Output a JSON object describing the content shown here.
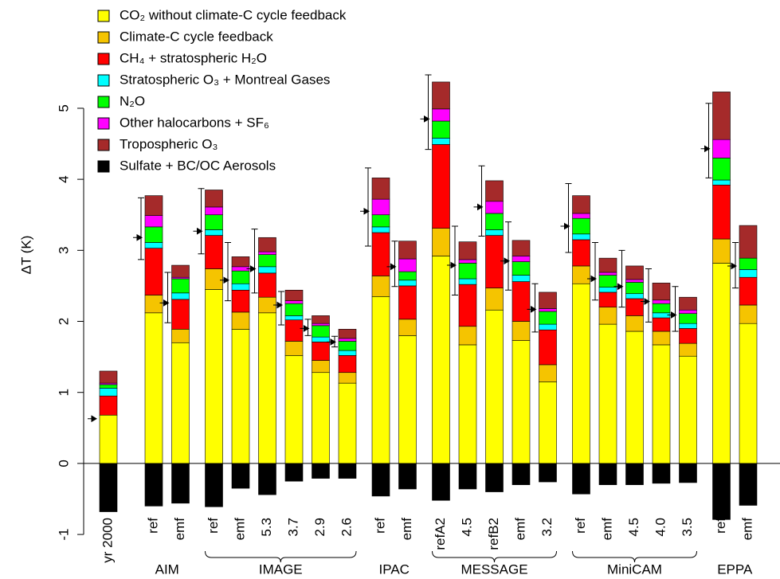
{
  "chart_data": {
    "type": "stacked-bar",
    "y_label": "ΔT (K)",
    "ylim": [
      -1.1,
      6.3
    ],
    "yticks": [
      -1,
      0,
      1,
      2,
      3,
      4,
      5
    ],
    "categories": [
      "yr 2000",
      "ref",
      "emf",
      "ref",
      "emf",
      "5.3",
      "3.7",
      "2.9",
      "2.6",
      "ref",
      "emf",
      "refA2",
      "4.5",
      "refB2",
      "emf",
      "3.2",
      "ref",
      "emf",
      "4.5",
      "4.0",
      "3.5",
      "ref",
      "emf"
    ],
    "groups": [
      {
        "name": "AIM",
        "first": 1,
        "last": 2
      },
      {
        "name": "IMAGE",
        "first": 3,
        "last": 8
      },
      {
        "name": "IPAC",
        "first": 9,
        "last": 10
      },
      {
        "name": "MESSAGE",
        "first": 11,
        "last": 15
      },
      {
        "name": "MiniCAM",
        "first": 16,
        "last": 20
      },
      {
        "name": "EPPA",
        "first": 21,
        "last": 22
      }
    ],
    "series": [
      {
        "name": "CO₂ without climate-C cycle feedback",
        "color": "#ffff00",
        "values": [
          0.68,
          2.12,
          1.7,
          2.45,
          1.89,
          2.12,
          1.52,
          1.28,
          1.13,
          2.35,
          1.8,
          2.92,
          1.67,
          2.16,
          1.73,
          1.15,
          2.53,
          1.96,
          1.86,
          1.67,
          1.51,
          2.82,
          1.97
        ]
      },
      {
        "name": "Climate-C cycle feedback",
        "color": "#f5c400",
        "values": [
          0,
          0.25,
          0.19,
          0.29,
          0.24,
          0.22,
          0.2,
          0.17,
          0.15,
          0.29,
          0.23,
          0.39,
          0.26,
          0.31,
          0.27,
          0.24,
          0.25,
          0.24,
          0.22,
          0.19,
          0.18,
          0.34,
          0.26
        ]
      },
      {
        "name": "CH₄ + stratospheric H₂O",
        "color": "#ff0000",
        "values": [
          0.27,
          0.66,
          0.42,
          0.47,
          0.31,
          0.34,
          0.3,
          0.26,
          0.24,
          0.61,
          0.47,
          1.18,
          0.59,
          0.74,
          0.56,
          0.49,
          0.37,
          0.21,
          0.24,
          0.19,
          0.21,
          0.76,
          0.39
        ]
      },
      {
        "name": "Stratospheric O₃ + Montreal Gases",
        "color": "#00ffff",
        "values": [
          0.11,
          0.08,
          0.09,
          0.08,
          0.09,
          0.09,
          0.06,
          0.07,
          0.07,
          0.08,
          0.08,
          0.09,
          0.08,
          0.08,
          0.09,
          0.08,
          0.08,
          0.07,
          0.07,
          0.07,
          0.07,
          0.07,
          0.11
        ]
      },
      {
        "name": "N₂O",
        "color": "#00ff00",
        "values": [
          0.05,
          0.22,
          0.2,
          0.21,
          0.18,
          0.17,
          0.17,
          0.16,
          0.13,
          0.17,
          0.12,
          0.24,
          0.22,
          0.23,
          0.19,
          0.18,
          0.22,
          0.17,
          0.16,
          0.13,
          0.14,
          0.31,
          0.16
        ]
      },
      {
        "name": "Other halocarbons + SF₆",
        "color": "#ff00ff",
        "values": [
          0.02,
          0.16,
          0.02,
          0.11,
          0.06,
          0.04,
          0.04,
          0.03,
          0.04,
          0.22,
          0.18,
          0.17,
          0.05,
          0.17,
          0.08,
          0.04,
          0.07,
          0.04,
          0.04,
          0.05,
          0.05,
          0.26,
          0
        ]
      },
      {
        "name": "Tropospheric O₃",
        "color": "#a52a2a",
        "values": [
          0.17,
          0.28,
          0.17,
          0.24,
          0.14,
          0.2,
          0.15,
          0.11,
          0.13,
          0.3,
          0.25,
          0.38,
          0.25,
          0.29,
          0.22,
          0.23,
          0.25,
          0.2,
          0.19,
          0.24,
          0.18,
          0.67,
          0.46
        ]
      },
      {
        "name": "Sulfate + BC/OC Aerosols",
        "color": "#000000",
        "values": [
          -0.68,
          -0.6,
          -0.56,
          -0.61,
          -0.35,
          -0.44,
          -0.25,
          -0.21,
          -0.21,
          -0.46,
          -0.36,
          -0.52,
          -0.36,
          -0.4,
          -0.3,
          -0.26,
          -0.43,
          -0.3,
          -0.3,
          -0.28,
          -0.27,
          -0.79,
          -0.59
        ]
      }
    ],
    "error_bars": {
      "marker": [
        0.63,
        3.18,
        2.26,
        3.27,
        2.58,
        2.74,
        2.23,
        1.9,
        1.71,
        3.55,
        2.77,
        4.85,
        2.79,
        3.61,
        2.85,
        2.17,
        3.34,
        2.6,
        2.49,
        2.28,
        2.09,
        4.43,
        2.78
      ],
      "low": [
        null,
        2.87,
        1.98,
        2.95,
        2.29,
        2.4,
        1.95,
        1.8,
        1.64,
        3.06,
        2.49,
        4.42,
        2.37,
        3.2,
        2.44,
        1.85,
        2.97,
        2.3,
        2.2,
        1.99,
        1.86,
        4.02,
        2.47
      ],
      "high": [
        null,
        3.74,
        2.69,
        3.87,
        3.11,
        3.3,
        2.42,
        2.03,
        1.79,
        4.16,
        3.13,
        5.47,
        3.34,
        4.19,
        3.4,
        2.53,
        3.94,
        3.11,
        3.0,
        2.74,
        2.49,
        5.07,
        3.11
      ]
    }
  }
}
